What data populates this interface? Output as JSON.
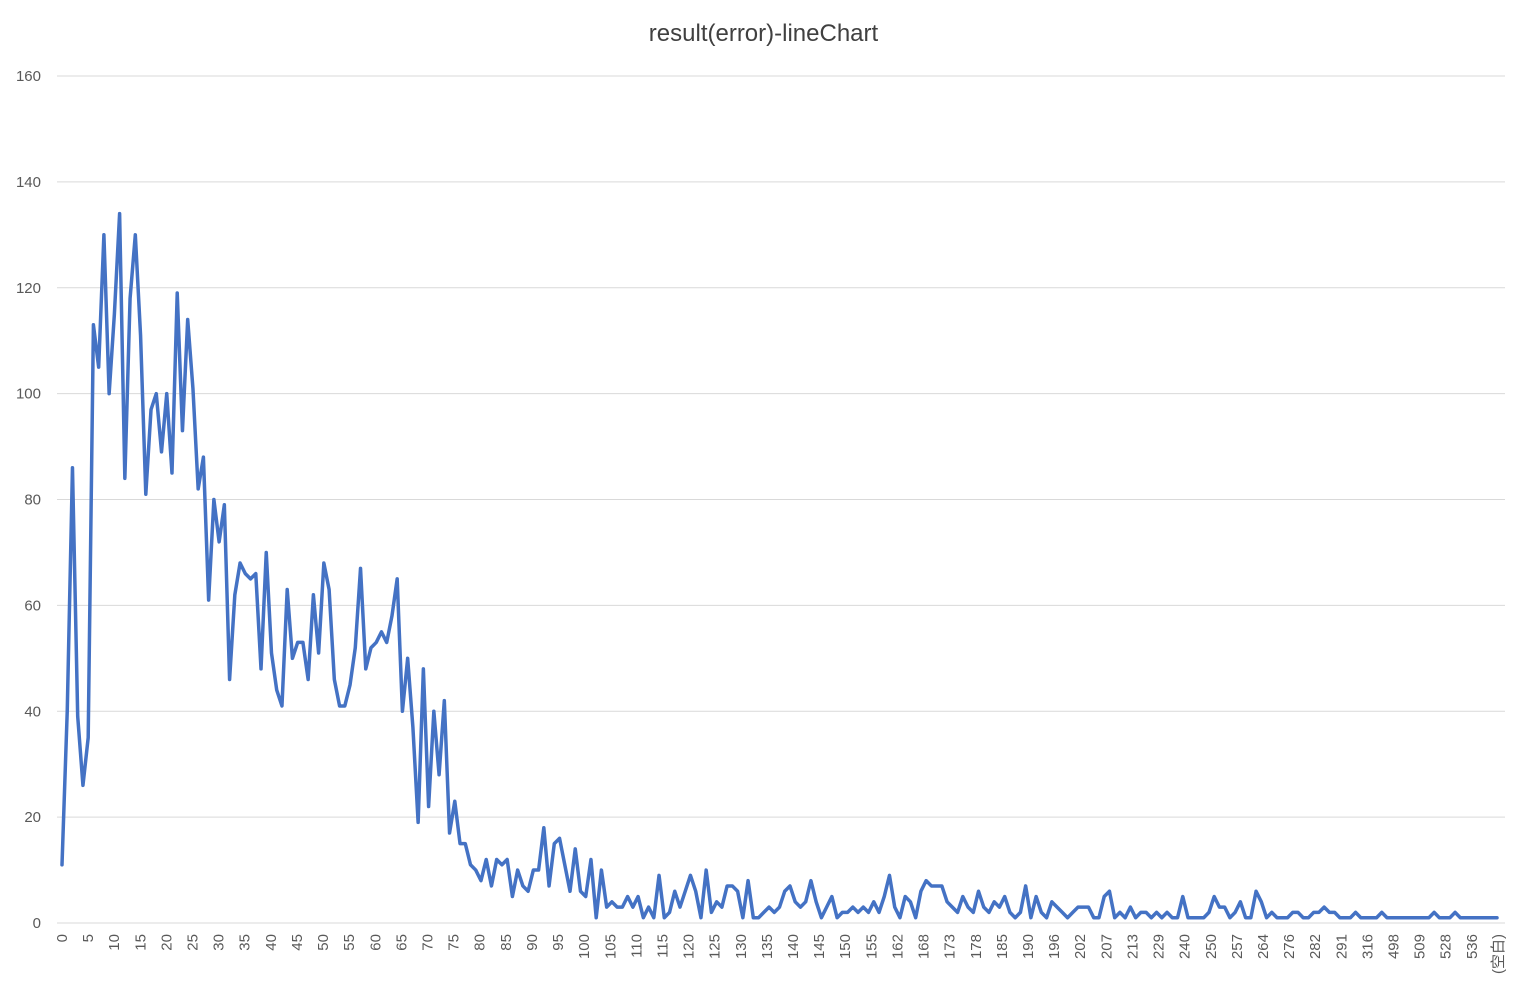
{
  "chart_data": {
    "type": "line",
    "title": "result(error)-lineChart",
    "xlabel": "",
    "ylabel": "",
    "ylim": [
      0,
      160
    ],
    "y_ticks": [
      0,
      20,
      40,
      60,
      80,
      100,
      120,
      140,
      160
    ],
    "grid": true,
    "legend": "none",
    "series_color": "#4472C4",
    "x_tick_labels": [
      "0",
      "5",
      "10",
      "15",
      "20",
      "25",
      "30",
      "35",
      "40",
      "45",
      "50",
      "55",
      "60",
      "65",
      "70",
      "75",
      "80",
      "85",
      "90",
      "95",
      "100",
      "105",
      "110",
      "115",
      "120",
      "125",
      "130",
      "135",
      "140",
      "145",
      "150",
      "155",
      "162",
      "168",
      "173",
      "178",
      "185",
      "190",
      "196",
      "202",
      "207",
      "213",
      "229",
      "240",
      "250",
      "257",
      "264",
      "276",
      "282",
      "291",
      "316",
      "498",
      "509",
      "528",
      "536",
      "(空白)"
    ],
    "series": [
      {
        "values": [
          11,
          40,
          86,
          39,
          26,
          35,
          113,
          105,
          130,
          100,
          115,
          134,
          84,
          118,
          130,
          111,
          81,
          97,
          100,
          89,
          100,
          85,
          119,
          93,
          114,
          101,
          82,
          88,
          61,
          80,
          72,
          79,
          46,
          62,
          68,
          66,
          65,
          66,
          48,
          70,
          51,
          44,
          41,
          63,
          50,
          53,
          53,
          46,
          62,
          51,
          68,
          63,
          46,
          41,
          41,
          45,
          52,
          67,
          48,
          52,
          53,
          55,
          53,
          58,
          65,
          40,
          50,
          37,
          19,
          48,
          22,
          40,
          28,
          42,
          17,
          23,
          15,
          15,
          11,
          10,
          8,
          12,
          7,
          12,
          11,
          12,
          5,
          10,
          7,
          6,
          10,
          10,
          18,
          7,
          15,
          16,
          11,
          6,
          14,
          6,
          5,
          12,
          1,
          10,
          3,
          4,
          3,
          3,
          5,
          3,
          5,
          1,
          3,
          1,
          9,
          1,
          2,
          6,
          3,
          6,
          9,
          6,
          1,
          10,
          2,
          4,
          3,
          7,
          7,
          6,
          1,
          8,
          1,
          1,
          2,
          3,
          2,
          3,
          6,
          7,
          4,
          3,
          4,
          8,
          4,
          1,
          3,
          5,
          1,
          2,
          2,
          3,
          2,
          3,
          2,
          4,
          2,
          5,
          9,
          3,
          1,
          5,
          4,
          1,
          6,
          8,
          7,
          7,
          7,
          4,
          3,
          2,
          5,
          3,
          2,
          6,
          3,
          2,
          4,
          3,
          5,
          2,
          1,
          2,
          7,
          1,
          5,
          2,
          1,
          4,
          3,
          2,
          1,
          2,
          3,
          3,
          3,
          1,
          1,
          5,
          6,
          1,
          2,
          1,
          3,
          1,
          2,
          2,
          1,
          2,
          1,
          2,
          1,
          1,
          5,
          1,
          1,
          1,
          1,
          2,
          5,
          3,
          3,
          1,
          2,
          4,
          1,
          1,
          6,
          4,
          1,
          2,
          1,
          1,
          1,
          2,
          2,
          1,
          1,
          2,
          2,
          3,
          2,
          2,
          1,
          1,
          1,
          2,
          1,
          1,
          1,
          1,
          2,
          1,
          1,
          1,
          1,
          1,
          1,
          1,
          1,
          1,
          2,
          1,
          1,
          1,
          2,
          1,
          1,
          1,
          1,
          1,
          1,
          1,
          1
        ]
      }
    ]
  }
}
